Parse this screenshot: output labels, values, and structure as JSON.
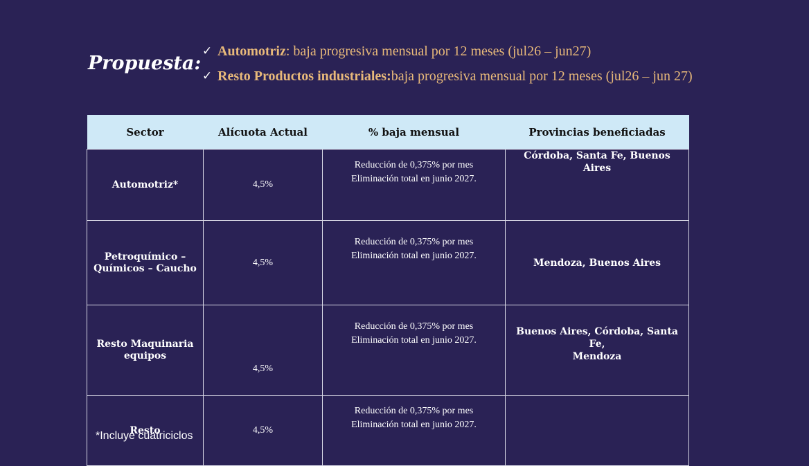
{
  "proposal": {
    "label": "Propuesta:",
    "bullets": [
      {
        "icon": "checkmark",
        "title": "Automotriz",
        "text": ": baja progresiva mensual por 12 meses (jul26 – jun27)"
      },
      {
        "icon": "checkmark",
        "title": "Resto Productos industriales:",
        "text": " baja progresiva mensual por 12 meses (jul26 – jun 27)"
      }
    ]
  },
  "table": {
    "headers": [
      "Sector",
      "Alícuota Actual",
      "% baja mensual",
      "Provincias beneficiadas"
    ],
    "rows": [
      {
        "sector": [
          "Automotriz*"
        ],
        "rate": "4,5%",
        "reduction": [
          "Reducción de 0,375% por mes",
          "Eliminación total en junio 2027."
        ],
        "provinces": [
          "Córdoba, Santa Fe, Buenos Aires"
        ]
      },
      {
        "sector": [
          "Petroquímico –",
          "Químicos – Caucho"
        ],
        "rate": "4,5%",
        "reduction": [
          "Reducción de 0,375% por mes",
          "Eliminación total en junio 2027."
        ],
        "provinces": [
          "Mendoza, Buenos Aires"
        ]
      },
      {
        "sector": [
          "Resto Maquinaria",
          "equipos"
        ],
        "rate": "4,5%",
        "reduction": [
          "Reducción de 0,375% por mes",
          "Eliminación total en junio 2027."
        ],
        "provinces": [
          "Buenos Aires, Córdoba, Santa Fe,",
          "Mendoza"
        ]
      },
      {
        "sector": [
          "Resto"
        ],
        "rate": "4,5%",
        "reduction": [
          "Reducción de 0,375% por mes",
          "Eliminación total en junio 2027."
        ],
        "provinces": []
      }
    ]
  },
  "footnote": "*Incluye cuatriciclos",
  "colors": {
    "background": "#2a2255",
    "accent": "#e8b97a",
    "header_bg": "#cfe9f7",
    "border": "#d9d9e6"
  }
}
